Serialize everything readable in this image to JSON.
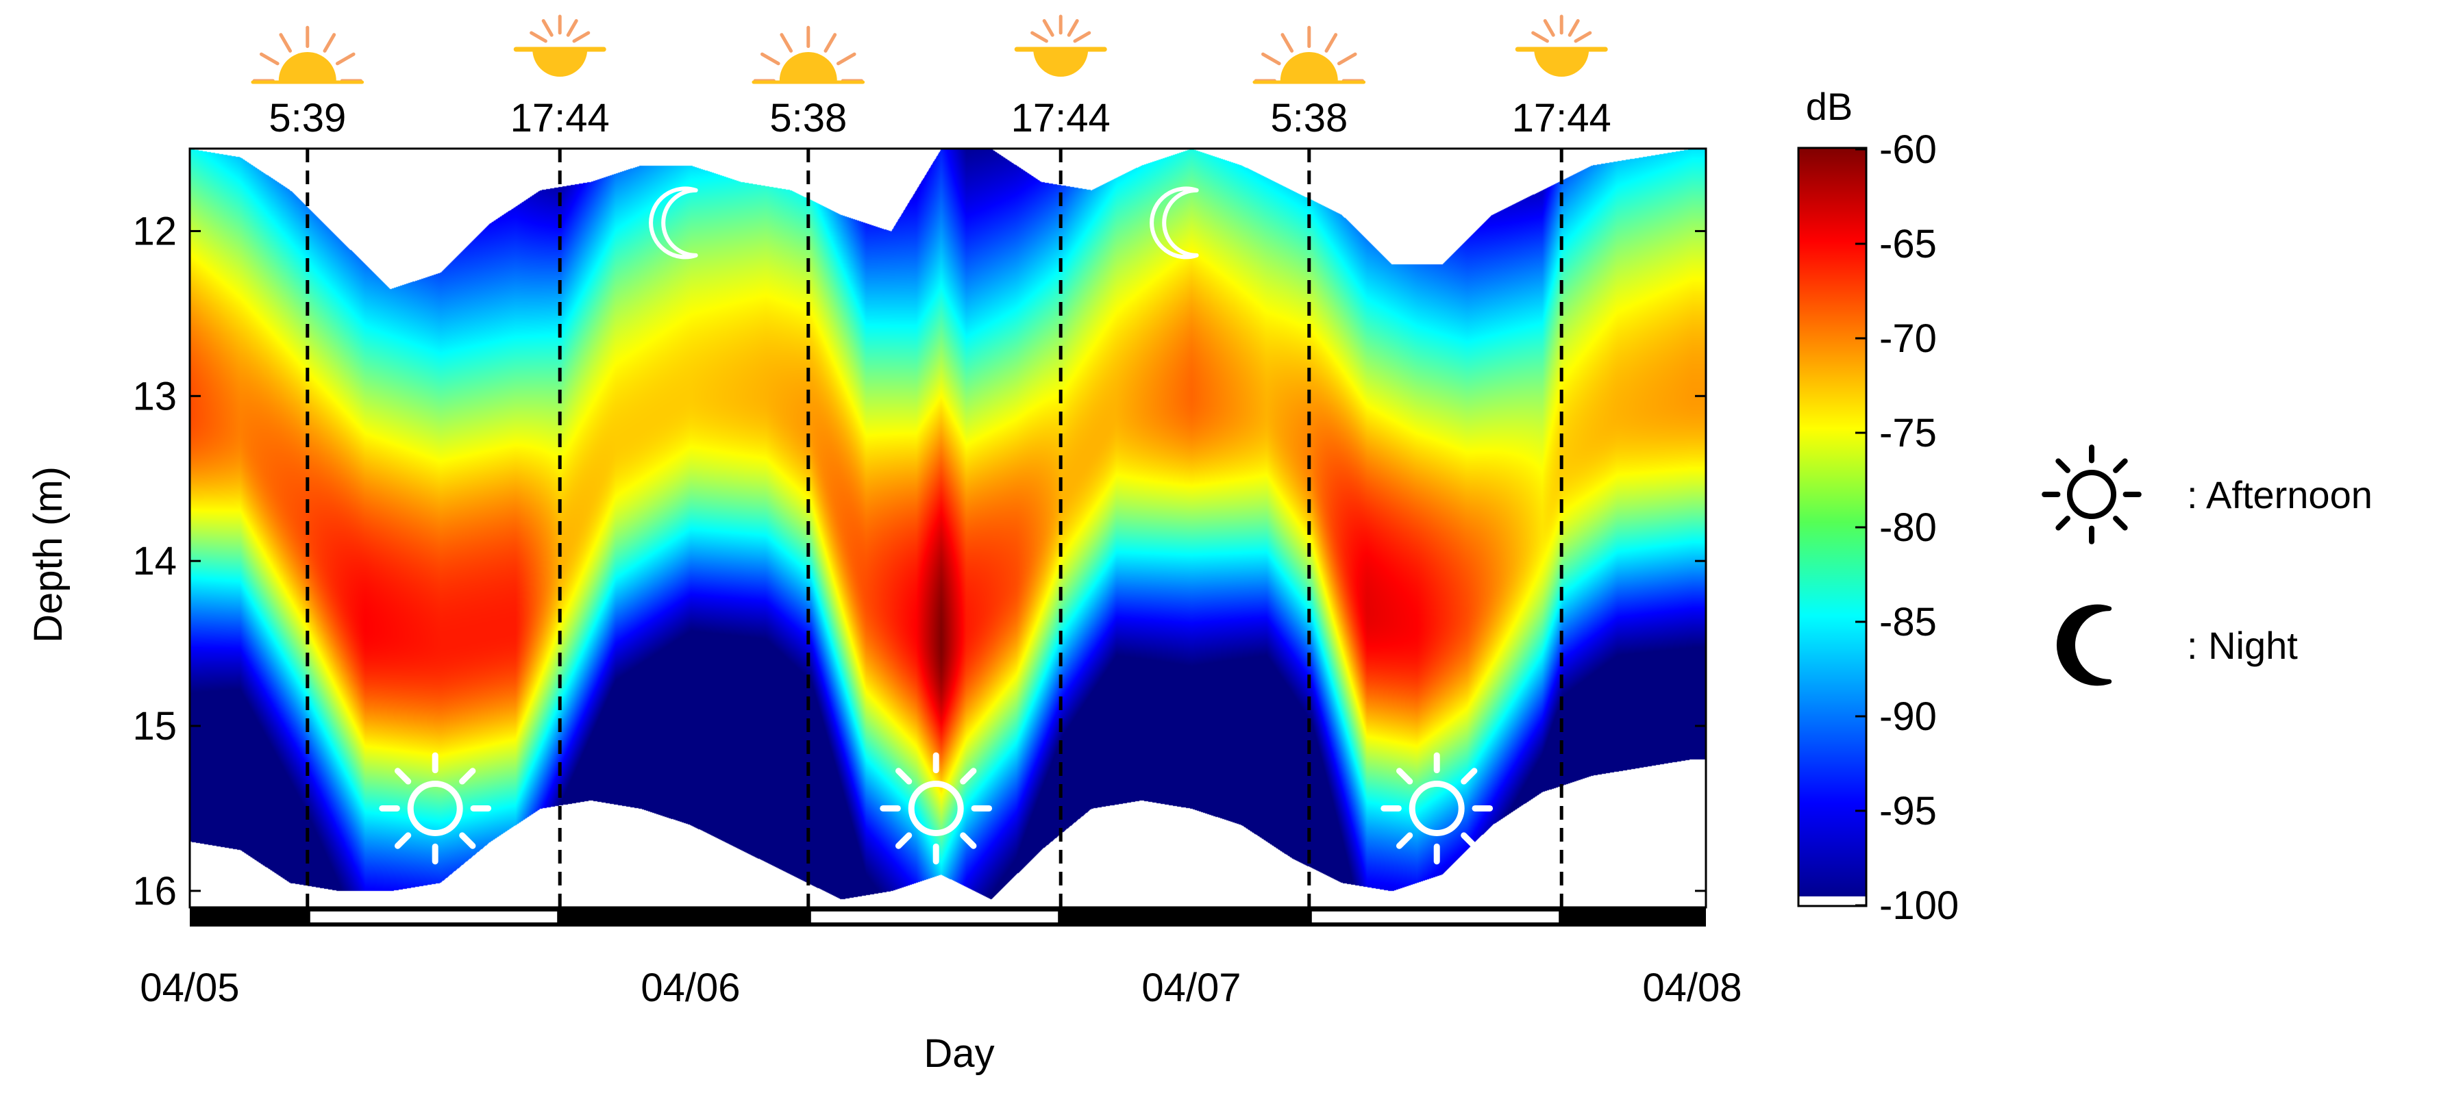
{
  "chart_data": {
    "type": "heatmap",
    "title": "",
    "xlabel": "Day",
    "ylabel": "Depth (m)",
    "x_ticks": [
      "04/05",
      "04/06",
      "04/07",
      "04/08"
    ],
    "x_range_days": [
      0,
      3
    ],
    "y_ticks": [
      12,
      13,
      14,
      15,
      16
    ],
    "ylim": [
      11.5,
      16.1
    ],
    "y_inverted": true,
    "colorbar": {
      "label": "dB",
      "ticks": [
        -60,
        -65,
        -70,
        -75,
        -80,
        -85,
        -90,
        -95,
        -100
      ],
      "range": [
        -100,
        -60
      ],
      "colormap": "jet"
    },
    "sun_times": [
      "5:39",
      "17:44",
      "5:38",
      "17:44",
      "5:38",
      "17:44"
    ],
    "sun_times_days": [
      0.235,
      0.739,
      1.235,
      1.739,
      2.235,
      2.739
    ],
    "light_periods": [
      [
        0.235,
        0.739
      ],
      [
        1.235,
        1.739
      ],
      [
        2.235,
        2.739
      ]
    ],
    "layer_peak_depth": {
      "x": [
        0.0,
        0.1,
        0.23,
        0.35,
        0.5,
        0.65,
        0.74,
        0.85,
        1.0,
        1.15,
        1.24,
        1.35,
        1.45,
        1.5,
        1.55,
        1.65,
        1.74,
        1.85,
        2.0,
        2.15,
        2.24,
        2.35,
        2.45,
        2.55,
        2.7,
        2.74,
        2.85,
        3.0
      ],
      "y": [
        13.1,
        13.2,
        13.8,
        14.4,
        14.5,
        14.4,
        14.0,
        13.3,
        13.0,
        13.0,
        13.2,
        14.2,
        14.4,
        14.5,
        14.4,
        14.1,
        13.6,
        13.1,
        13.0,
        13.1,
        13.4,
        14.3,
        14.4,
        14.3,
        13.8,
        13.4,
        13.1,
        13.0
      ]
    },
    "layer_peak_db": {
      "x": [
        0.0,
        0.1,
        0.23,
        0.35,
        0.5,
        0.65,
        0.74,
        0.85,
        1.0,
        1.15,
        1.24,
        1.35,
        1.45,
        1.5,
        1.55,
        1.65,
        1.74,
        1.85,
        2.0,
        2.15,
        2.24,
        2.35,
        2.45,
        2.55,
        2.7,
        2.74,
        2.85,
        3.0
      ],
      "y": [
        -68,
        -70,
        -68,
        -65,
        -66,
        -66,
        -72,
        -73,
        -73,
        -72,
        -71,
        -68,
        -65,
        -60,
        -66,
        -68,
        -72,
        -72,
        -69,
        -72,
        -70,
        -64,
        -65,
        -68,
        -74,
        -73,
        -72,
        -71
      ]
    },
    "echo_top_depth": {
      "x": [
        0.0,
        0.1,
        0.2,
        0.3,
        0.4,
        0.5,
        0.6,
        0.7,
        0.8,
        0.9,
        1.0,
        1.1,
        1.2,
        1.3,
        1.4,
        1.5,
        1.6,
        1.7,
        1.8,
        1.9,
        2.0,
        2.1,
        2.2,
        2.3,
        2.4,
        2.5,
        2.6,
        2.7,
        2.8,
        2.9,
        3.0
      ],
      "y": [
        11.5,
        11.55,
        11.75,
        12.05,
        12.35,
        12.25,
        11.95,
        11.75,
        11.7,
        11.6,
        11.6,
        11.7,
        11.75,
        11.9,
        12.0,
        11.5,
        11.5,
        11.7,
        11.75,
        11.6,
        11.5,
        11.6,
        11.75,
        11.9,
        12.2,
        12.2,
        11.9,
        11.75,
        11.6,
        11.55,
        11.5
      ]
    },
    "echo_bottom_depth": {
      "x": [
        0.0,
        0.1,
        0.2,
        0.3,
        0.4,
        0.5,
        0.6,
        0.7,
        0.8,
        0.9,
        1.0,
        1.1,
        1.2,
        1.3,
        1.4,
        1.5,
        1.6,
        1.7,
        1.8,
        1.9,
        2.0,
        2.1,
        2.2,
        2.3,
        2.4,
        2.5,
        2.6,
        2.7,
        2.8,
        2.9,
        3.0
      ],
      "y": [
        15.7,
        15.75,
        15.95,
        16.0,
        16.0,
        15.95,
        15.7,
        15.5,
        15.45,
        15.5,
        15.6,
        15.75,
        15.9,
        16.05,
        16.0,
        15.9,
        16.05,
        15.75,
        15.5,
        15.45,
        15.5,
        15.6,
        15.8,
        15.95,
        16.0,
        15.9,
        15.6,
        15.4,
        15.3,
        15.25,
        15.2
      ]
    },
    "legend": [
      {
        "icon": "sun-icon",
        "label": ": Afternoon"
      },
      {
        "icon": "moon-icon",
        "label": ": Night"
      }
    ],
    "plot_icons": [
      {
        "icon": "sun-icon",
        "day": 0.49,
        "depth": 15.5
      },
      {
        "icon": "sun-icon",
        "day": 1.49,
        "depth": 15.5
      },
      {
        "icon": "sun-icon",
        "day": 2.49,
        "depth": 15.5
      },
      {
        "icon": "moon-icon",
        "day": 0.99,
        "depth": 11.95
      },
      {
        "icon": "moon-icon",
        "day": 1.99,
        "depth": 11.95
      }
    ]
  }
}
